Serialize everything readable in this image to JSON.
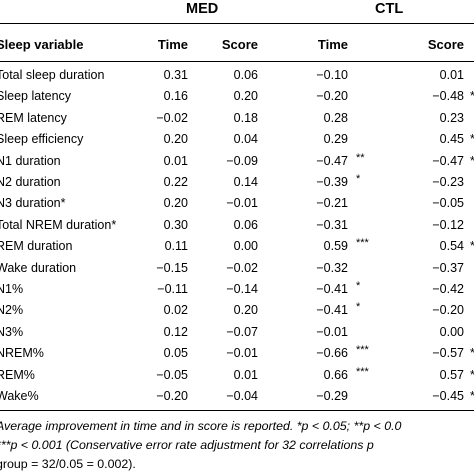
{
  "table": {
    "group_headers": {
      "med": "MED",
      "ctl": "CTL"
    },
    "columns": {
      "variable": "Sleep variable",
      "med_time": "Time",
      "med_score": "Score",
      "ctl_time": "Time",
      "ctl_score": "Score"
    },
    "rows": [
      {
        "label": "Total sleep duration",
        "med_time": "0.31",
        "med_score": "0.06",
        "ctl_time": "−0.10",
        "ctl_time_sig": "",
        "ctl_score": "0.01",
        "edge": ""
      },
      {
        "label": "Sleep latency",
        "med_time": "0.16",
        "med_score": "0.20",
        "ctl_time": "−0.20",
        "ctl_time_sig": "",
        "ctl_score": "−0.48",
        "edge": "*"
      },
      {
        "label": "REM latency",
        "med_time": "−0.02",
        "med_score": "0.18",
        "ctl_time": "0.28",
        "ctl_time_sig": "",
        "ctl_score": "0.23",
        "edge": ""
      },
      {
        "label": "Sleep efficiency",
        "med_time": "0.20",
        "med_score": "0.04",
        "ctl_time": "0.29",
        "ctl_time_sig": "",
        "ctl_score": "0.45",
        "edge": "*"
      },
      {
        "label": "N1 duration",
        "med_time": "0.01",
        "med_score": "−0.09",
        "ctl_time": "−0.47",
        "ctl_time_sig": "**",
        "ctl_score": "−0.47",
        "edge": "*"
      },
      {
        "label": "N2 duration",
        "med_time": "0.22",
        "med_score": "0.14",
        "ctl_time": "−0.39",
        "ctl_time_sig": "*",
        "ctl_score": "−0.23",
        "edge": ""
      },
      {
        "label": "N3 duration*",
        "med_time": "0.20",
        "med_score": "−0.01",
        "ctl_time": "−0.21",
        "ctl_time_sig": "",
        "ctl_score": "−0.05",
        "edge": ""
      },
      {
        "label": "Total NREM duration*",
        "med_time": "0.30",
        "med_score": "0.06",
        "ctl_time": "−0.31",
        "ctl_time_sig": "",
        "ctl_score": "−0.12",
        "edge": ""
      },
      {
        "label": "REM duration",
        "med_time": "0.11",
        "med_score": "0.00",
        "ctl_time": "0.59",
        "ctl_time_sig": "***",
        "ctl_score": "0.54",
        "edge": "*"
      },
      {
        "label": "Wake duration",
        "med_time": "−0.15",
        "med_score": "−0.02",
        "ctl_time": "−0.32",
        "ctl_time_sig": "",
        "ctl_score": "−0.37",
        "edge": ""
      },
      {
        "label": "N1%",
        "med_time": "−0.11",
        "med_score": "−0.14",
        "ctl_time": "−0.41",
        "ctl_time_sig": "*",
        "ctl_score": "−0.42",
        "edge": ""
      },
      {
        "label": "N2%",
        "med_time": "0.02",
        "med_score": "0.20",
        "ctl_time": "−0.41",
        "ctl_time_sig": "*",
        "ctl_score": "−0.20",
        "edge": ""
      },
      {
        "label": "N3%",
        "med_time": "0.12",
        "med_score": "−0.07",
        "ctl_time": "−0.01",
        "ctl_time_sig": "",
        "ctl_score": "0.00",
        "edge": ""
      },
      {
        "label": "NREM%",
        "med_time": "0.05",
        "med_score": "−0.01",
        "ctl_time": "−0.66",
        "ctl_time_sig": "***",
        "ctl_score": "−0.57",
        "edge": "*"
      },
      {
        "label": "REM%",
        "med_time": "−0.05",
        "med_score": "0.01",
        "ctl_time": "0.66",
        "ctl_time_sig": "***",
        "ctl_score": "0.57",
        "edge": "*"
      },
      {
        "label": "Wake%",
        "med_time": "−0.20",
        "med_score": "−0.04",
        "ctl_time": "−0.29",
        "ctl_time_sig": "",
        "ctl_score": "−0.45",
        "edge": "*"
      }
    ],
    "footnote": {
      "line1": "Average improvement in time and in score is reported. *p < 0.05; **p < 0.0",
      "line2": "***p < 0.001 (Conservative error rate adjustment for 32 correlations p",
      "line3": "group = 32/0.05 = 0.002)."
    }
  }
}
